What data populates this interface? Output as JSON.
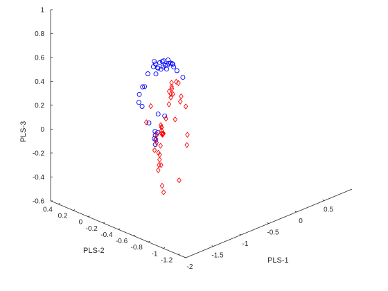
{
  "chart_data": {
    "type": "scatter",
    "view": "3d",
    "grid": false,
    "axes": {
      "x": {
        "label": "PLS-1",
        "range": [
          -2,
          1
        ],
        "ticks": [
          -2,
          -1.5,
          -1,
          -0.5,
          0,
          0.5
        ],
        "tick_labels": [
          "-2",
          "-1.5",
          "-1",
          "-0.5",
          "0",
          "0.5"
        ]
      },
      "y": {
        "label": "PLS-2",
        "range": [
          -1.3,
          0.5
        ],
        "ticks": [
          -1.2,
          -1,
          -0.8,
          -0.6,
          -0.4,
          -0.2,
          0,
          0.2,
          0.4
        ],
        "tick_labels": [
          "-1.2",
          "-1",
          "-0.8",
          "-0.6",
          "-0.4",
          "-0.2",
          "0",
          "0.2",
          "0.4"
        ]
      },
      "z": {
        "label": "PLS-3",
        "range": [
          -0.6,
          1
        ],
        "ticks": [
          -0.6,
          -0.4,
          -0.2,
          0,
          0.2,
          0.4,
          0.6,
          0.8,
          1
        ],
        "tick_labels": [
          "-0.6",
          "-0.4",
          "-0.2",
          "0",
          "0.2",
          "0.4",
          "0.6",
          "0.8",
          "1"
        ]
      }
    },
    "series": [
      {
        "marker": "circle",
        "color": "#0000ff",
        "points": [
          [
            -1.6,
            -0.38,
            0.38
          ],
          [
            -1.5,
            -0.35,
            0.32
          ],
          [
            -1.32,
            -0.18,
            0.34
          ],
          [
            -1.18,
            -0.12,
            0.36
          ],
          [
            -1.05,
            -0.05,
            0.32
          ],
          [
            -0.95,
            -0.02,
            0.4
          ],
          [
            -0.85,
            -0.02,
            0.44
          ],
          [
            -0.78,
            0.02,
            0.46
          ],
          [
            -0.75,
            0.02,
            0.35
          ],
          [
            -0.72,
            0.05,
            0.42
          ],
          [
            -0.68,
            0.05,
            0.38
          ],
          [
            -0.63,
            0.08,
            0.36
          ],
          [
            -0.6,
            0.08,
            0.4
          ],
          [
            -0.55,
            0.1,
            0.33
          ],
          [
            -0.5,
            0.12,
            0.38
          ],
          [
            -0.46,
            0.14,
            0.32
          ],
          [
            -0.42,
            0.16,
            0.36
          ],
          [
            -0.38,
            0.17,
            0.31
          ],
          [
            -0.34,
            0.18,
            0.27
          ],
          [
            -0.3,
            0.2,
            0.29
          ],
          [
            -0.26,
            0.22,
            0.32
          ],
          [
            -0.22,
            0.24,
            0.28
          ],
          [
            -0.17,
            0.25,
            0.27
          ],
          [
            -0.12,
            0.27,
            0.25
          ],
          [
            -0.1,
            0.22,
            0.2
          ],
          [
            -0.05,
            0.3,
            0.2
          ],
          [
            0.0,
            0.35,
            0.2
          ],
          [
            0.25,
            0.4,
            0.03
          ],
          [
            -1.85,
            -0.7,
            0.34
          ],
          [
            -1.7,
            -0.66,
            0.17
          ],
          [
            -1.56,
            -0.57,
            0.07
          ],
          [
            -1.43,
            -0.48,
            0.06
          ],
          [
            -1.33,
            -0.4,
            0.06
          ],
          [
            -1.2,
            -0.3,
            0.04
          ],
          [
            -1.1,
            -0.26,
            0.0
          ],
          [
            -0.9,
            -0.12,
            0.08
          ],
          [
            -0.7,
            -0.06,
            0.01
          ]
        ]
      },
      {
        "marker": "diamond",
        "color": "#ff0000",
        "points": [
          [
            -2.0,
            -1.16,
            0.52
          ],
          [
            -1.97,
            -0.98,
            0.35
          ],
          [
            -1.6,
            -0.48,
            0.24
          ],
          [
            -1.66,
            -0.66,
            0.13
          ],
          [
            -1.52,
            -0.48,
            0.36
          ],
          [
            -1.56,
            -0.56,
            0.02
          ],
          [
            -1.64,
            -0.72,
            -0.22
          ],
          [
            -1.56,
            -0.68,
            -0.3
          ],
          [
            -1.52,
            -0.58,
            -0.15
          ],
          [
            -1.4,
            -0.5,
            -0.15
          ],
          [
            -1.35,
            -0.42,
            0.04
          ],
          [
            -1.3,
            -0.4,
            0.06
          ],
          [
            -1.28,
            -0.42,
            -0.15
          ],
          [
            -1.28,
            -0.44,
            -0.19
          ],
          [
            -1.25,
            -0.4,
            -0.12
          ],
          [
            -1.22,
            -0.36,
            -0.12
          ],
          [
            -1.18,
            -0.37,
            0.09
          ],
          [
            -1.15,
            -0.35,
            0.05
          ],
          [
            -1.1,
            -0.3,
            -0.1
          ],
          [
            -1.08,
            -0.3,
            0.05
          ],
          [
            -1.05,
            -0.28,
            -0.01
          ],
          [
            -1.0,
            -0.25,
            -0.04
          ],
          [
            -0.96,
            -0.2,
            0.02
          ],
          [
            -0.92,
            -0.2,
            -0.06
          ],
          [
            -0.88,
            -0.17,
            -0.08
          ],
          [
            -0.8,
            -0.15,
            0.03
          ],
          [
            -0.62,
            -0.06,
            0.2
          ],
          [
            -0.48,
            0.02,
            0.13
          ],
          [
            -0.46,
            0.06,
            0.03
          ],
          [
            -0.4,
            0.08,
            0.07
          ],
          [
            -0.38,
            0.08,
            0.14
          ],
          [
            -0.36,
            0.1,
            0.18
          ],
          [
            -0.28,
            0.14,
            0.06
          ],
          [
            -0.14,
            0.2,
            0.12
          ],
          [
            -0.04,
            0.22,
            -0.07
          ],
          [
            0.03,
            0.26,
            -0.05
          ],
          [
            -0.02,
            0.26,
            0.07
          ],
          [
            0.02,
            0.38,
            0.0
          ],
          [
            0.06,
            0.22,
            -0.13
          ],
          [
            -0.1,
            0.08,
            -0.3
          ],
          [
            -0.3,
            -0.06,
            -0.31
          ],
          [
            -0.9,
            -0.4,
            -0.4
          ]
        ]
      }
    ]
  }
}
